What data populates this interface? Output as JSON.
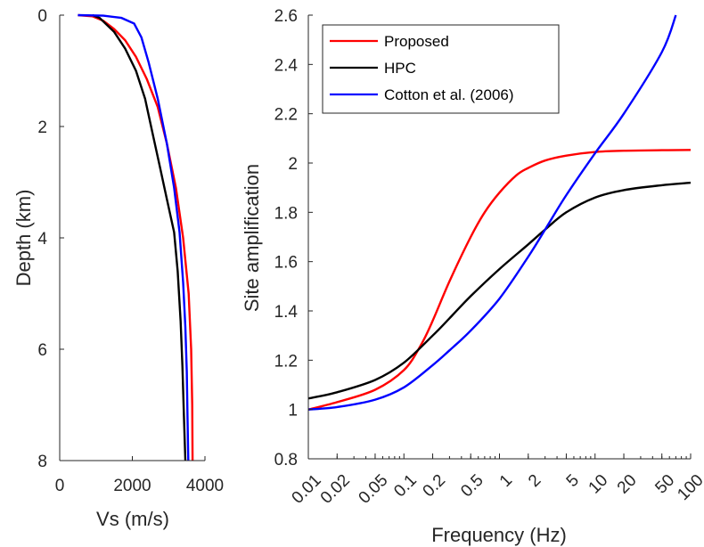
{
  "chart_data": [
    {
      "type": "line",
      "xlabel": "Vs (m/s)",
      "ylabel": "Depth (km)",
      "xlim": [
        0,
        4000
      ],
      "ylim": [
        0,
        8
      ],
      "y_reversed": true,
      "x_ticks": [
        0,
        2000,
        4000
      ],
      "x_tick_labels": [
        "0",
        "2000",
        "4000"
      ],
      "y_ticks": [
        0,
        2,
        4,
        6,
        8
      ],
      "y_tick_labels": [
        "0",
        "2",
        "4",
        "6",
        "8"
      ],
      "series": [
        {
          "name": "Proposed",
          "color": "#ff0000",
          "x": [
            500,
            900,
            1200,
            1500,
            1800,
            2100,
            2400,
            2700,
            2950,
            3200,
            3400,
            3550,
            3620,
            3650,
            3660
          ],
          "y": [
            0,
            0.02,
            0.1,
            0.25,
            0.45,
            0.75,
            1.15,
            1.65,
            2.3,
            3.1,
            4.0,
            5.0,
            6.0,
            7.0,
            8.0
          ]
        },
        {
          "name": "HPC",
          "color": "#000000",
          "x": [
            900,
            1100,
            1500,
            1800,
            2100,
            2350,
            2550,
            2750,
            2950,
            3150,
            3250,
            3330,
            3380,
            3420,
            3460
          ],
          "y": [
            0,
            0.05,
            0.3,
            0.6,
            1.0,
            1.5,
            2.1,
            2.7,
            3.3,
            3.9,
            4.6,
            5.5,
            6.3,
            7.2,
            8.0
          ]
        },
        {
          "name": "Cotton et al. (2006)",
          "color": "#0000ff",
          "x": [
            500,
            1200,
            1700,
            2050,
            2250,
            2450,
            2700,
            2950,
            3150,
            3300,
            3400,
            3460,
            3500,
            3520,
            3540
          ],
          "y": [
            0,
            0.01,
            0.05,
            0.15,
            0.4,
            0.85,
            1.5,
            2.3,
            3.1,
            3.9,
            4.8,
            5.6,
            6.4,
            7.2,
            8.0
          ]
        }
      ]
    },
    {
      "type": "line",
      "xlabel": "Frequency (Hz)",
      "ylabel": "Site amplification",
      "xscale": "log",
      "xlim": [
        0.01,
        100
      ],
      "ylim": [
        0.8,
        2.6
      ],
      "x_ticks": [
        0.01,
        0.02,
        0.05,
        0.1,
        0.2,
        0.5,
        1,
        2,
        5,
        10,
        20,
        50,
        100
      ],
      "x_tick_labels": [
        "0.01",
        "0.02",
        "0.05",
        "0.1",
        "0.2",
        "0.5",
        "1",
        "2",
        "5",
        "10",
        "20",
        "50",
        "100"
      ],
      "y_ticks": [
        0.8,
        1,
        1.2,
        1.4,
        1.6,
        1.8,
        2,
        2.2,
        2.4,
        2.6
      ],
      "y_tick_labels": [
        "0.8",
        "1",
        "1.2",
        "1.4",
        "1.6",
        "1.8",
        "2",
        "2.2",
        "2.4",
        "2.6"
      ],
      "legend_position": "top-left",
      "series": [
        {
          "name": "Proposed",
          "color": "#ff0000",
          "x": [
            0.01,
            0.02,
            0.05,
            0.1,
            0.15,
            0.2,
            0.3,
            0.5,
            0.7,
            1,
            1.5,
            2,
            3,
            5,
            10,
            20,
            50,
            100
          ],
          "y": [
            1.0,
            1.03,
            1.08,
            1.16,
            1.26,
            1.36,
            1.52,
            1.7,
            1.8,
            1.88,
            1.95,
            1.98,
            2.01,
            2.03,
            2.045,
            2.05,
            2.052,
            2.053
          ]
        },
        {
          "name": "HPC",
          "color": "#000000",
          "x": [
            0.01,
            0.02,
            0.05,
            0.1,
            0.2,
            0.3,
            0.5,
            1,
            2,
            3,
            5,
            10,
            20,
            50,
            100
          ],
          "y": [
            1.045,
            1.07,
            1.12,
            1.19,
            1.3,
            1.37,
            1.46,
            1.57,
            1.67,
            1.73,
            1.8,
            1.86,
            1.89,
            1.91,
            1.92
          ]
        },
        {
          "name": "Cotton et al. (2006)",
          "color": "#0000ff",
          "x": [
            0.01,
            0.02,
            0.05,
            0.1,
            0.2,
            0.3,
            0.5,
            1,
            2,
            3,
            5,
            10,
            20,
            50,
            70
          ],
          "y": [
            1.0,
            1.01,
            1.04,
            1.09,
            1.18,
            1.24,
            1.32,
            1.45,
            1.62,
            1.73,
            1.87,
            2.04,
            2.2,
            2.45,
            2.6
          ]
        }
      ]
    }
  ]
}
